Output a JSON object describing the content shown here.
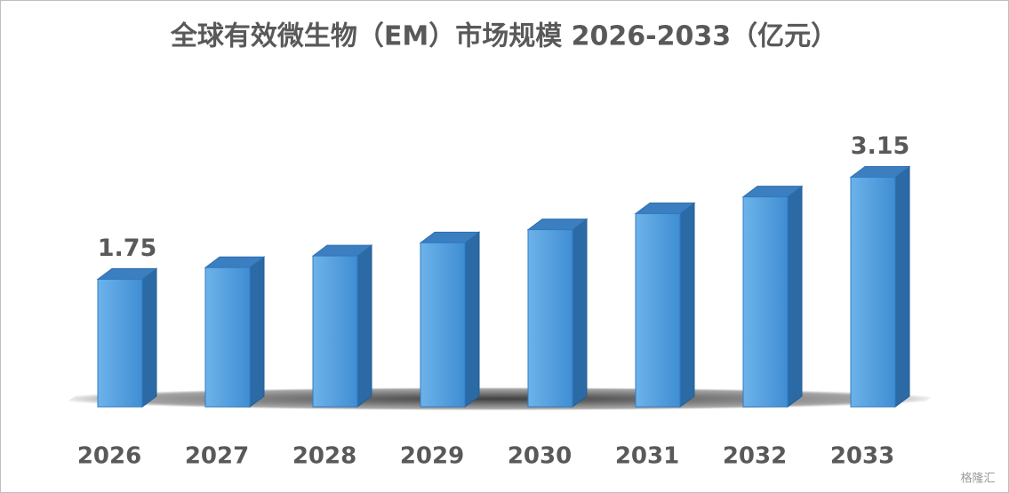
{
  "chart_data": {
    "type": "bar3d",
    "title": "全球有效微生物（EM）市场规模 2026-2033（亿元）",
    "categories": [
      "2026",
      "2027",
      "2028",
      "2029",
      "2030",
      "2031",
      "2032",
      "2033"
    ],
    "values": [
      1.75,
      1.91,
      2.07,
      2.25,
      2.43,
      2.65,
      2.88,
      3.15
    ],
    "labeled": [
      true,
      false,
      false,
      false,
      false,
      false,
      false,
      true
    ],
    "color": "#5aa5e0",
    "ylim": [
      0,
      3.4
    ]
  },
  "watermark": "格隆汇"
}
